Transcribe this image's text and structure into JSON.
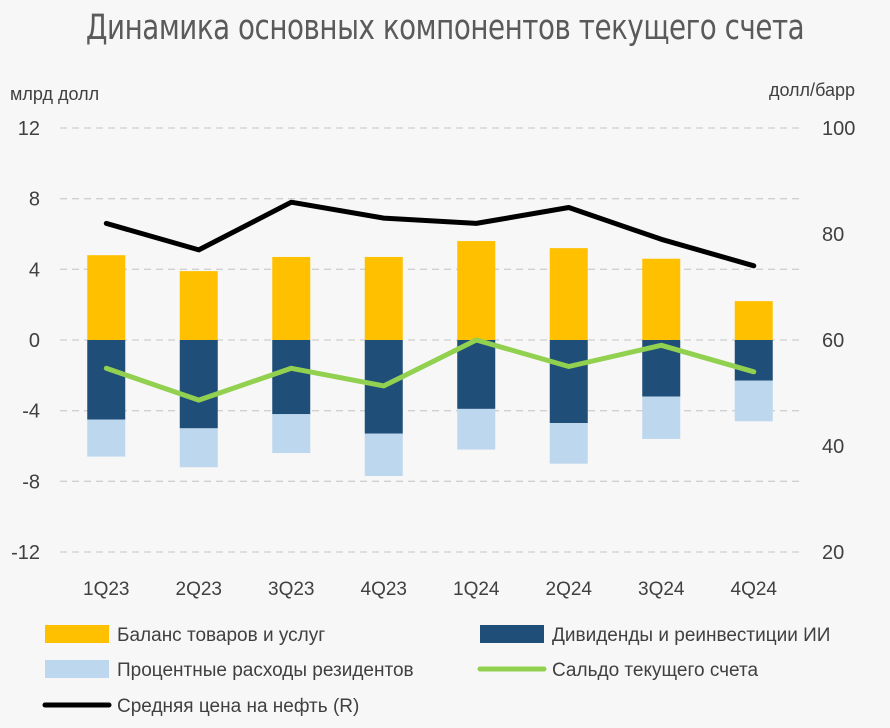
{
  "chart_data": {
    "type": "bar",
    "title": "Динамика основных компонентов текущего счета",
    "ylabel_left": "млрд долл",
    "ylabel_right": "долл/барр",
    "ylim_left": [
      -12,
      12
    ],
    "yticks_left": [
      "12",
      "8",
      "4",
      "0",
      "-4",
      "-8",
      "-12"
    ],
    "ylim_right": [
      20,
      100
    ],
    "yticks_right": [
      "100",
      "80",
      "60",
      "40",
      "20"
    ],
    "grid": true,
    "legend_position": "bottom",
    "categories": [
      "1Q23",
      "2Q23",
      "3Q23",
      "4Q23",
      "1Q24",
      "2Q24",
      "3Q24",
      "4Q24"
    ],
    "series": [
      {
        "name": "Баланс товаров и услуг",
        "kind": "bar",
        "axis": "left",
        "color": "#FFC000",
        "values": [
          4.8,
          3.9,
          4.7,
          4.7,
          5.6,
          5.2,
          4.6,
          2.2
        ]
      },
      {
        "name": "Дивиденды и реинвестиции ИИ",
        "kind": "bar",
        "axis": "left",
        "color": "#1F4E79",
        "values": [
          -4.5,
          -5.0,
          -4.2,
          -5.3,
          -3.9,
          -4.7,
          -3.2,
          -2.3
        ]
      },
      {
        "name": "Процентные расходы резидентов",
        "kind": "bar",
        "axis": "left",
        "color": "#BDD7EE",
        "values": [
          -2.1,
          -2.2,
          -2.2,
          -2.4,
          -2.3,
          -2.3,
          -2.4,
          -2.3
        ]
      },
      {
        "name": "Сальдо текущего счета",
        "kind": "line",
        "axis": "left",
        "color": "#92D050",
        "values": [
          -1.6,
          -3.4,
          -1.6,
          -2.6,
          0.0,
          -1.5,
          -0.3,
          -1.8
        ]
      },
      {
        "name": "Средняя цена на нефть (R)",
        "kind": "line",
        "axis": "right",
        "color": "#000000",
        "values": [
          82,
          77,
          86,
          83,
          82,
          85,
          79,
          74
        ]
      }
    ]
  }
}
